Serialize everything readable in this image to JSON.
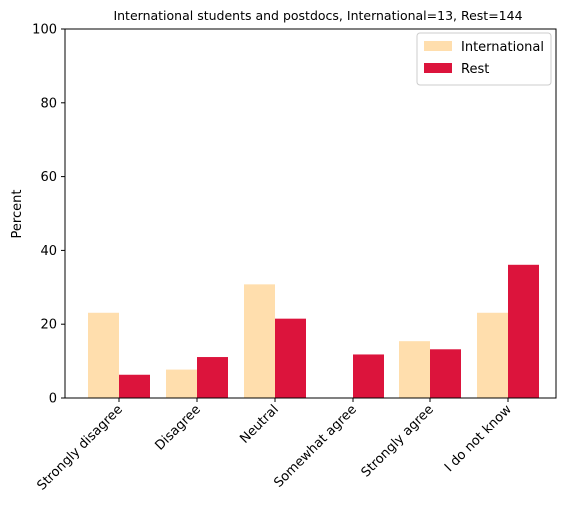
{
  "chart_data": {
    "type": "bar",
    "title": "International students and postdocs, International=13, Rest=144",
    "xlabel": "",
    "ylabel": "Percent",
    "ylim": [
      0,
      100
    ],
    "yticks": [
      0,
      20,
      40,
      60,
      80,
      100
    ],
    "categories": [
      "Strongly disagree",
      "Disagree",
      "Neutral",
      "Somewhat agree",
      "Strongly agree",
      "I do not know"
    ],
    "series": [
      {
        "name": "International",
        "color": "#FFDEAD",
        "values": [
          23.1,
          7.7,
          30.8,
          0.0,
          15.4,
          23.1
        ]
      },
      {
        "name": "Rest",
        "color": "#DC143C",
        "values": [
          6.3,
          11.1,
          21.5,
          11.8,
          13.2,
          36.1
        ]
      }
    ],
    "grid": false,
    "legend": "top-right"
  }
}
